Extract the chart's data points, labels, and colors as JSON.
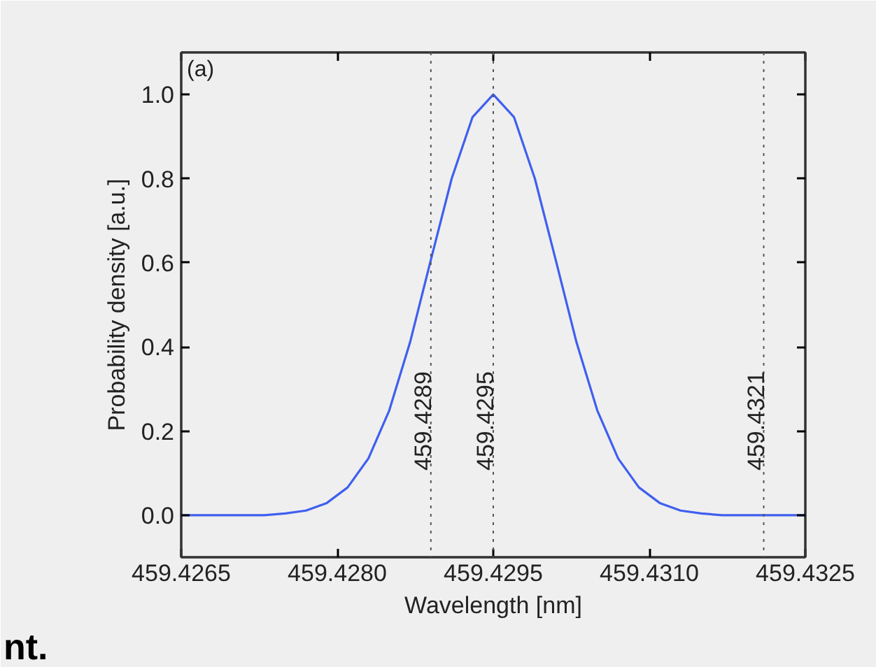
{
  "chart_data": {
    "type": "line",
    "xlabel": "Wavelength [nm]",
    "ylabel": "Probability density [a.u.]",
    "x": [
      459.4265,
      459.4267,
      459.4269,
      459.4271,
      459.4273,
      459.4275,
      459.4277,
      459.4279,
      459.4281,
      459.4283,
      459.4285,
      459.4287,
      459.4289,
      459.4291,
      459.4293,
      459.4295,
      459.4297,
      459.4299,
      459.4301,
      459.4303,
      459.4305,
      459.4307,
      459.4309,
      459.4311,
      459.4313,
      459.4315,
      459.4317,
      459.4319,
      459.4321,
      459.4323,
      459.4325
    ],
    "series": [
      {
        "color": "#3f5ff0",
        "values": [
          0,
          0,
          0,
          0,
          0,
          0.004,
          0.011,
          0.029,
          0.066,
          0.135,
          0.249,
          0.411,
          0.607,
          0.8,
          0.946,
          1,
          0.946,
          0.8,
          0.607,
          0.411,
          0.249,
          0.135,
          0.066,
          0.029,
          0.011,
          0.004,
          0,
          0,
          0,
          0,
          0
        ]
      }
    ],
    "xlim": [
      459.4265,
      459.4325
    ],
    "ylim": [
      -0.1,
      1.1
    ],
    "xticks": [
      459.4265,
      {
        "value": 459.428,
        "label": "459.4280"
      },
      459.4295,
      {
        "value": 459.431,
        "label": "459.4310"
      },
      459.4325
    ],
    "yticks": [
      {
        "value": 0,
        "label": "0.0"
      },
      0.2,
      0.4,
      0.6,
      0.8,
      {
        "value": 1,
        "label": "1.0"
      }
    ],
    "ref_lines": [
      {
        "axis": "x",
        "value": 459.4289,
        "label": "459.4289",
        "line_style": "dotted"
      },
      {
        "axis": "x",
        "value": 459.4295,
        "label": "459.4295",
        "line_style": "dotted"
      },
      {
        "axis": "x",
        "value": 459.4321,
        "label": "459.4321",
        "line_style": "dotted"
      }
    ],
    "annotations": [
      "(a)",
      "nt."
    ],
    "line_style": "solid",
    "marker": "none"
  }
}
